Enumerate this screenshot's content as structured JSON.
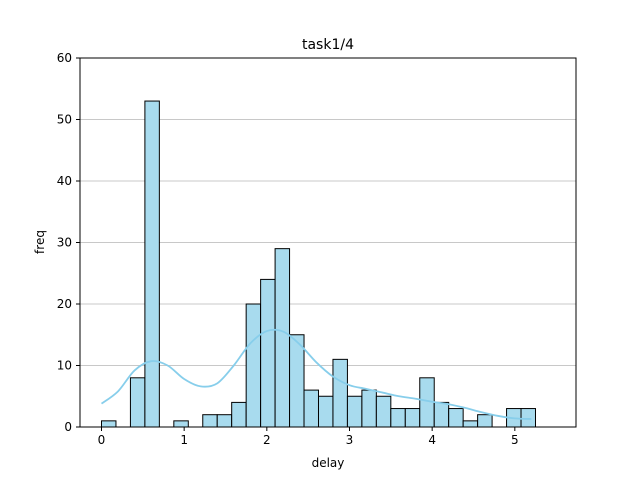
{
  "chart_data": {
    "type": "bar",
    "title": "task1/4",
    "xlabel": "delay",
    "ylabel": "freq",
    "xlim": [
      -0.26,
      5.74
    ],
    "ylim": [
      0,
      60
    ],
    "xticks": [
      0,
      1,
      2,
      3,
      4,
      5
    ],
    "yticks": [
      0,
      10,
      20,
      30,
      40,
      50,
      60
    ],
    "grid": "horizontal",
    "bin_width": 0.175,
    "bin_start": 0.0,
    "values": [
      1,
      0,
      8,
      53,
      0,
      1,
      0,
      2,
      2,
      4,
      20,
      24,
      29,
      15,
      6,
      5,
      11,
      5,
      6,
      5,
      3,
      3,
      8,
      4,
      3,
      1,
      2,
      0,
      3,
      3
    ],
    "kde": {
      "x": [
        0,
        0.2,
        0.4,
        0.6,
        0.8,
        1.0,
        1.2,
        1.4,
        1.6,
        1.8,
        2.0,
        2.2,
        2.4,
        2.6,
        2.8,
        3.0,
        3.2,
        3.4,
        3.6,
        3.8,
        4.0,
        4.2,
        4.4,
        4.6,
        4.8,
        5.0,
        5.2
      ],
      "y": [
        3.8,
        5.8,
        9.2,
        10.7,
        10.0,
        7.8,
        6.6,
        7.1,
        10.0,
        13.6,
        15.6,
        15.5,
        13.4,
        10.5,
        8.2,
        6.8,
        6.2,
        5.6,
        5.0,
        4.6,
        4.1,
        3.7,
        3.1,
        2.4,
        1.8,
        1.4,
        1.3
      ]
    },
    "colors": {
      "bar_fill": "#a8dbee",
      "bar_edge": "#000000",
      "kde_line": "#87ceeb",
      "grid": "#c8c8c8"
    }
  }
}
